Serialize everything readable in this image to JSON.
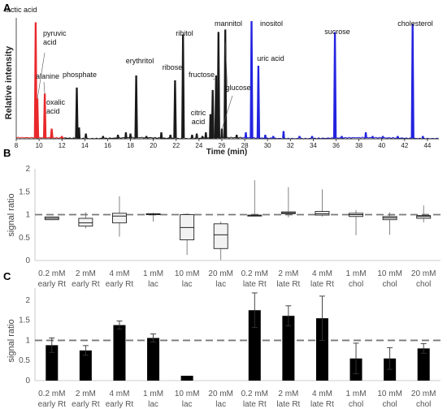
{
  "panels": [
    {
      "label": "A"
    },
    {
      "label": "B"
    },
    {
      "label": "C"
    }
  ],
  "chart_data": [
    {
      "panel": "A",
      "type": "line",
      "xlabel": "Time (min)",
      "ylabel": "Relative intensity",
      "xlim": [
        8,
        45
      ],
      "x_ticks": [
        8,
        10,
        12,
        14,
        16,
        18,
        20,
        22,
        24,
        26,
        28,
        30,
        32,
        34,
        36,
        38,
        40,
        42,
        44
      ],
      "colors": {
        "red": "#e8282b",
        "black": "#1a1a1a",
        "blue": "#2323e0"
      },
      "peaks": [
        {
          "t": 9.7,
          "h": 0.96,
          "color": "red",
          "label": "lactic acid"
        },
        {
          "t": 9.85,
          "h": 0.33,
          "color": "red",
          "label": "pyruvic acid"
        },
        {
          "t": 10.5,
          "h": 0.37,
          "color": "red",
          "label": "alanine"
        },
        {
          "t": 11.1,
          "h": 0.08,
          "color": "red",
          "label": "oxalic acid"
        },
        {
          "t": 13.3,
          "h": 0.42,
          "color": "black",
          "label": "phosphate"
        },
        {
          "t": 18.5,
          "h": 0.52,
          "color": "black",
          "label": "erythritol"
        },
        {
          "t": 21.9,
          "h": 0.48,
          "color": "black",
          "label": "ribose"
        },
        {
          "t": 22.6,
          "h": 0.86,
          "color": "black",
          "label": "ribitol"
        },
        {
          "t": 25.2,
          "h": 0.4,
          "color": "black",
          "label": "citric acid"
        },
        {
          "t": 25.5,
          "h": 0.52,
          "color": "black",
          "label": "fructose"
        },
        {
          "t": 25.7,
          "h": 0.88,
          "color": "black",
          "label": "mannitol"
        },
        {
          "t": 26.3,
          "h": 0.9,
          "color": "black",
          "label": "glucose"
        },
        {
          "t": 28.6,
          "h": 0.97,
          "color": "blue",
          "label": "inositol"
        },
        {
          "t": 29.2,
          "h": 0.6,
          "color": "blue",
          "label": "uric acid"
        },
        {
          "t": 35.9,
          "h": 0.88,
          "color": "blue",
          "label": "sucrose"
        },
        {
          "t": 42.7,
          "h": 0.95,
          "color": "blue",
          "label": "cholesterol"
        }
      ],
      "minor_peaks": [
        {
          "t": 12.0,
          "h": 0.02,
          "color": "red"
        },
        {
          "t": 13.5,
          "h": 0.09,
          "color": "black"
        },
        {
          "t": 14.1,
          "h": 0.04,
          "color": "black"
        },
        {
          "t": 15.6,
          "h": 0.02,
          "color": "black"
        },
        {
          "t": 16.9,
          "h": 0.03,
          "color": "black"
        },
        {
          "t": 17.6,
          "h": 0.05,
          "color": "black"
        },
        {
          "t": 18.0,
          "h": 0.04,
          "color": "black"
        },
        {
          "t": 19.4,
          "h": 0.02,
          "color": "black"
        },
        {
          "t": 20.7,
          "h": 0.05,
          "color": "black"
        },
        {
          "t": 21.5,
          "h": 0.03,
          "color": "black"
        },
        {
          "t": 23.4,
          "h": 0.03,
          "color": "black"
        },
        {
          "t": 23.8,
          "h": 0.04,
          "color": "black"
        },
        {
          "t": 24.3,
          "h": 0.02,
          "color": "black"
        },
        {
          "t": 24.6,
          "h": 0.05,
          "color": "black"
        },
        {
          "t": 25.0,
          "h": 0.2,
          "color": "black"
        },
        {
          "t": 26.0,
          "h": 0.08,
          "color": "black"
        },
        {
          "t": 27.3,
          "h": 0.03,
          "color": "black"
        },
        {
          "t": 28.1,
          "h": 0.05,
          "color": "blue"
        },
        {
          "t": 29.8,
          "h": 0.03,
          "color": "blue"
        },
        {
          "t": 30.5,
          "h": 0.02,
          "color": "blue"
        },
        {
          "t": 31.4,
          "h": 0.06,
          "color": "blue"
        },
        {
          "t": 32.8,
          "h": 0.02,
          "color": "blue"
        },
        {
          "t": 33.9,
          "h": 0.02,
          "color": "blue"
        },
        {
          "t": 36.5,
          "h": 0.02,
          "color": "blue"
        },
        {
          "t": 38.6,
          "h": 0.05,
          "color": "blue"
        },
        {
          "t": 39.2,
          "h": 0.02,
          "color": "blue"
        },
        {
          "t": 40.1,
          "h": 0.02,
          "color": "blue"
        },
        {
          "t": 41.4,
          "h": 0.02,
          "color": "blue"
        },
        {
          "t": 43.6,
          "h": 0.02,
          "color": "blue"
        }
      ],
      "color_segments": [
        {
          "from": 8,
          "to": 12.2,
          "color": "red"
        },
        {
          "from": 12.2,
          "to": 27.8,
          "color": "black"
        },
        {
          "from": 27.8,
          "to": 45,
          "color": "blue"
        }
      ]
    },
    {
      "panel": "B",
      "type": "box",
      "ylabel": "signal ratio",
      "ylim": [
        0,
        2
      ],
      "y_ticks": [
        0,
        0.5,
        1,
        1.5,
        2
      ],
      "reference_line": 1,
      "categories": [
        [
          "0.2 mM",
          "early Rt"
        ],
        [
          "2 mM",
          "early Rt"
        ],
        [
          "4 mM",
          "early Rt"
        ],
        [
          "1 mM",
          "lac"
        ],
        [
          "10 mM",
          "lac"
        ],
        [
          "20 mM",
          "lac"
        ],
        [
          "0.2 mM",
          "late Rt"
        ],
        [
          "2 mM",
          "late Rt"
        ],
        [
          "4 mM",
          "late Rt"
        ],
        [
          "1 mM",
          "chol"
        ],
        [
          "10 mM",
          "chol"
        ],
        [
          "20 mM",
          "chol"
        ]
      ],
      "boxes": [
        {
          "min": 0.88,
          "q1": 0.89,
          "median": 0.92,
          "q3": 0.95,
          "max": 0.96
        },
        {
          "min": 0.7,
          "q1": 0.75,
          "median": 0.82,
          "q3": 0.92,
          "max": 1.05
        },
        {
          "min": 0.52,
          "q1": 0.82,
          "median": 0.97,
          "q3": 1.03,
          "max": 1.4
        },
        {
          "min": 0.85,
          "q1": 1.0,
          "median": 1.01,
          "q3": 1.02,
          "max": 1.04
        },
        {
          "min": 0.12,
          "q1": 0.45,
          "median": 0.72,
          "q3": 1.0,
          "max": 1.03
        },
        {
          "min": 0.01,
          "q1": 0.26,
          "median": 0.56,
          "q3": 0.8,
          "max": 0.85
        },
        {
          "min": 0.96,
          "q1": 0.97,
          "median": 0.98,
          "q3": 0.99,
          "max": 1.75
        },
        {
          "min": 0.94,
          "q1": 1.02,
          "median": 1.04,
          "q3": 1.06,
          "max": 1.6
        },
        {
          "min": 0.96,
          "q1": 0.99,
          "median": 1.02,
          "q3": 1.07,
          "max": 1.55
        },
        {
          "min": 0.55,
          "q1": 0.96,
          "median": 1.0,
          "q3": 1.03,
          "max": 1.1
        },
        {
          "min": 0.56,
          "q1": 0.89,
          "median": 0.93,
          "q3": 0.96,
          "max": 1.05
        },
        {
          "min": 0.83,
          "q1": 0.92,
          "median": 0.96,
          "q3": 0.98,
          "max": 1.2
        }
      ]
    },
    {
      "panel": "C",
      "type": "bar",
      "ylabel": "signal ratio",
      "ylim": [
        0,
        2.3
      ],
      "y_ticks": [
        0,
        0.5,
        1,
        1.5,
        2
      ],
      "reference_line": 1,
      "categories": [
        [
          "0.2 mM",
          "early Rt"
        ],
        [
          "2 mM",
          "early Rt"
        ],
        [
          "4 mM",
          "early Rt"
        ],
        [
          "1 mM",
          "lac"
        ],
        [
          "10 mM",
          "lac"
        ],
        [
          "20 mM",
          "lac"
        ],
        [
          "0.2 mM",
          "late Rt"
        ],
        [
          "2 mM",
          "late Rt"
        ],
        [
          "4 mM",
          "late Rt"
        ],
        [
          "1 mM",
          "chol"
        ],
        [
          "10 mM",
          "chol"
        ],
        [
          "20 mM",
          "chol"
        ]
      ],
      "values": [
        0.88,
        0.75,
        1.38,
        1.06,
        0.12,
        0,
        1.75,
        1.61,
        1.55,
        0.55,
        0.55,
        0.8
      ],
      "errors": [
        0.18,
        0.12,
        0.1,
        0.1,
        0,
        0,
        0.43,
        0.25,
        0.55,
        0.38,
        0.27,
        0.12
      ]
    }
  ]
}
